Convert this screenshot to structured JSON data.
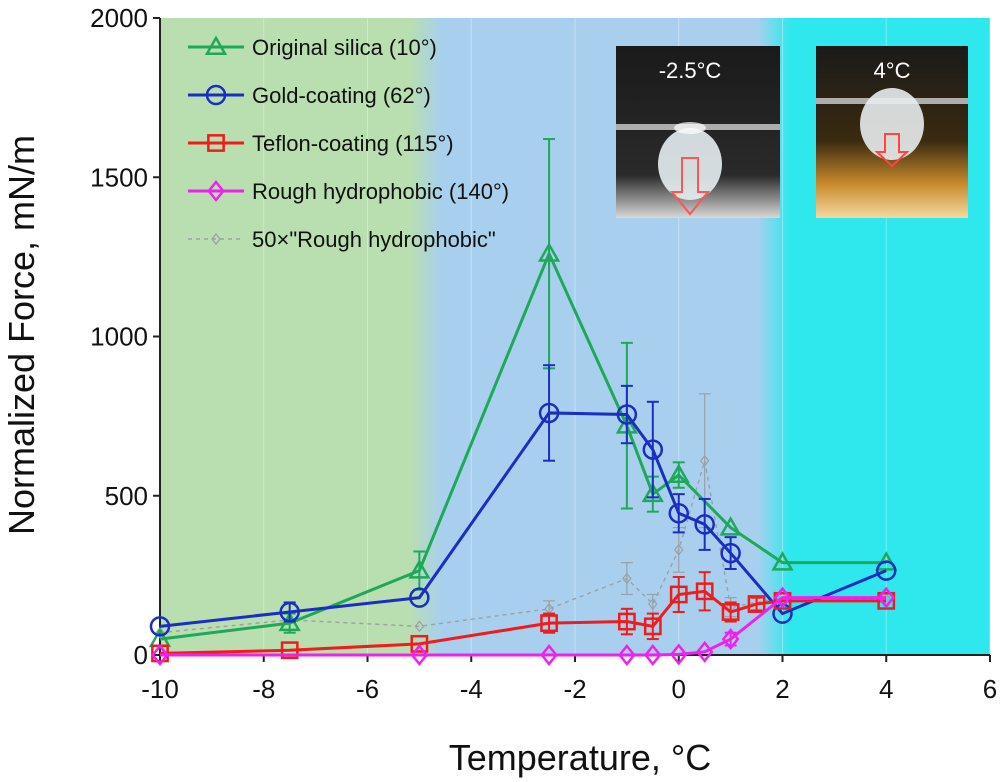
{
  "chart_data": {
    "type": "line",
    "xlabel": "Temperature, °C",
    "ylabel": "Normalized Force, mN/m",
    "xlim": [
      -10,
      6
    ],
    "ylim": [
      0,
      2000
    ],
    "xticks": [
      "-10",
      "-8",
      "-6",
      "-4",
      "-2",
      "0",
      "2",
      "4",
      "6"
    ],
    "yticks": [
      "0",
      "500",
      "1000",
      "1500",
      "2000"
    ],
    "background_regions": [
      {
        "from": -10,
        "to": -5,
        "color": "#b9deb0"
      },
      {
        "from": -5,
        "to": 2,
        "color": "#a8d0ee"
      },
      {
        "from": 2,
        "to": 6,
        "color": "#2ee8ee"
      }
    ],
    "series": [
      {
        "name": "Original silica (10°)",
        "color": "#1fa85a",
        "marker": "triangle",
        "dashed": false,
        "x": [
          -10,
          -7.5,
          -5,
          -2.5,
          -1,
          -0.5,
          0,
          1,
          2,
          4
        ],
        "y": [
          50,
          100,
          265,
          1260,
          720,
          505,
          565,
          400,
          290,
          290
        ],
        "err": [
          0,
          30,
          60,
          360,
          260,
          55,
          40,
          0,
          0,
          0
        ]
      },
      {
        "name": "Gold-coating (62°)",
        "color": "#1a2fc2",
        "marker": "circle",
        "dashed": false,
        "x": [
          -10,
          -7.5,
          -5,
          -2.5,
          -1,
          -0.5,
          0,
          0.5,
          1,
          2,
          4
        ],
        "y": [
          90,
          135,
          180,
          760,
          755,
          645,
          445,
          410,
          320,
          130,
          265
        ],
        "err": [
          0,
          30,
          0,
          150,
          90,
          150,
          60,
          80,
          50,
          0,
          0
        ]
      },
      {
        "name": "Teflon-coating (115°)",
        "color": "#ee1c1c",
        "marker": "square",
        "dashed": false,
        "x": [
          -10,
          -7.5,
          -5,
          -2.5,
          -1,
          -0.5,
          0,
          0.5,
          1,
          1.5,
          2,
          4
        ],
        "y": [
          5,
          15,
          35,
          100,
          105,
          90,
          190,
          200,
          135,
          160,
          170,
          170
        ],
        "err": [
          0,
          0,
          0,
          30,
          40,
          40,
          55,
          60,
          30,
          20,
          0,
          0
        ]
      },
      {
        "name": "Rough hydrophobic (140°)",
        "color": "#ee22ee",
        "marker": "diamond",
        "dashed": false,
        "x": [
          -10,
          -5,
          -2.5,
          -1,
          -0.5,
          0,
          0.5,
          1,
          2,
          4
        ],
        "y": [
          0,
          0,
          0,
          0,
          0,
          2,
          10,
          50,
          180,
          180
        ],
        "err": [
          0,
          0,
          0,
          0,
          0,
          0,
          0,
          20,
          0,
          0
        ]
      },
      {
        "name": "50×\"Rough hydrophobic\"",
        "color": "#9aa0a6",
        "marker": "diamond",
        "dashed": true,
        "x": [
          -10,
          -7.5,
          -5,
          -2.5,
          -1,
          -0.5,
          0,
          0.5,
          1,
          2,
          4
        ],
        "y": [
          70,
          110,
          90,
          145,
          240,
          160,
          330,
          610,
          150,
          180,
          175
        ],
        "err": [
          0,
          0,
          0,
          25,
          50,
          30,
          70,
          210,
          30,
          0,
          0
        ]
      }
    ],
    "legend_position": "top-left",
    "insets": [
      {
        "label": "-2.5°C"
      },
      {
        "label": "4°C"
      }
    ]
  }
}
